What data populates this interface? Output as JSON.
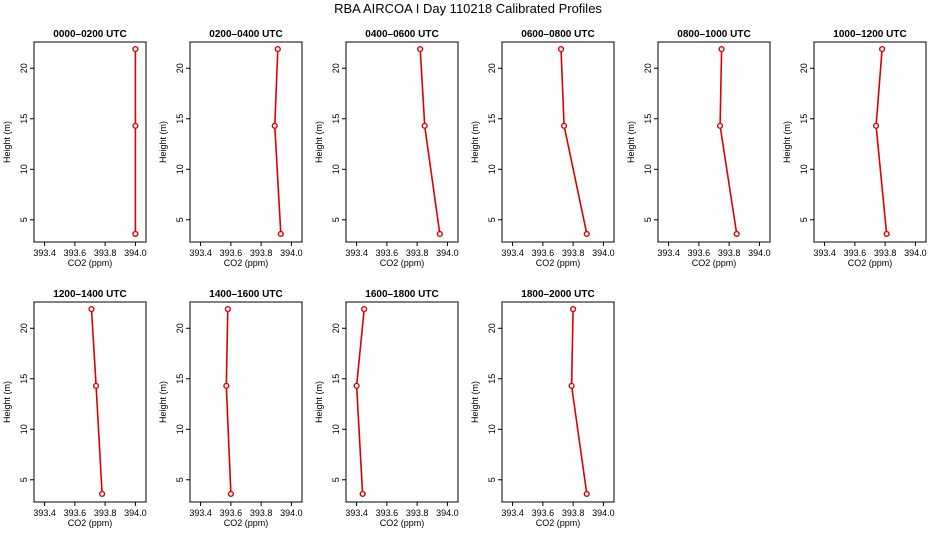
{
  "figure_title": "RBA AIRCOA I  Day 110218  Calibrated Profiles",
  "colors": {
    "profile": "#dd0000",
    "axis": "#000000"
  },
  "chart_data": [
    {
      "type": "line",
      "title": "0000–0200 UTC",
      "xlabel": "CO2 (ppm)",
      "ylabel": "Height (m)",
      "xlim": [
        393.33,
        394.07
      ],
      "ylim": [
        2.8,
        22.6
      ],
      "x_ticks": [
        "393.4",
        "393.6",
        "393.8",
        "394.0"
      ],
      "y_ticks": [
        "5",
        "10",
        "15",
        "20"
      ],
      "x": [
        394.0,
        394.0,
        394.0
      ],
      "y": [
        3.6,
        14.3,
        21.9
      ]
    },
    {
      "type": "line",
      "title": "0200–0400 UTC",
      "xlabel": "CO2 (ppm)",
      "ylabel": "Height (m)",
      "xlim": [
        393.33,
        394.07
      ],
      "ylim": [
        2.8,
        22.6
      ],
      "x_ticks": [
        "393.4",
        "393.6",
        "393.8",
        "394.0"
      ],
      "y_ticks": [
        "5",
        "10",
        "15",
        "20"
      ],
      "x": [
        393.93,
        393.89,
        393.91
      ],
      "y": [
        3.6,
        14.3,
        21.9
      ]
    },
    {
      "type": "line",
      "title": "0400–0600 UTC",
      "xlabel": "CO2 (ppm)",
      "ylabel": "Height (m)",
      "xlim": [
        393.33,
        394.07
      ],
      "ylim": [
        2.8,
        22.6
      ],
      "x_ticks": [
        "393.4",
        "393.6",
        "393.8",
        "394.0"
      ],
      "y_ticks": [
        "5",
        "10",
        "15",
        "20"
      ],
      "x": [
        393.95,
        393.85,
        393.82
      ],
      "y": [
        3.6,
        14.3,
        21.9
      ]
    },
    {
      "type": "line",
      "title": "0600–0800 UTC",
      "xlabel": "CO2 (ppm)",
      "ylabel": "Height (m)",
      "xlim": [
        393.33,
        394.07
      ],
      "ylim": [
        2.8,
        22.6
      ],
      "x_ticks": [
        "393.4",
        "393.6",
        "393.8",
        "394.0"
      ],
      "y_ticks": [
        "5",
        "10",
        "15",
        "20"
      ],
      "x": [
        393.89,
        393.74,
        393.72
      ],
      "y": [
        3.6,
        14.3,
        21.9
      ]
    },
    {
      "type": "line",
      "title": "0800–1000 UTC",
      "xlabel": "CO2 (ppm)",
      "ylabel": "Height (m)",
      "xlim": [
        393.33,
        394.07
      ],
      "ylim": [
        2.8,
        22.6
      ],
      "x_ticks": [
        "393.4",
        "393.6",
        "393.8",
        "394.0"
      ],
      "y_ticks": [
        "5",
        "10",
        "15",
        "20"
      ],
      "x": [
        393.85,
        393.74,
        393.75
      ],
      "y": [
        3.6,
        14.3,
        21.9
      ]
    },
    {
      "type": "line",
      "title": "1000–1200 UTC",
      "xlabel": "CO2 (ppm)",
      "ylabel": "Height (m)",
      "xlim": [
        393.33,
        394.07
      ],
      "ylim": [
        2.8,
        22.6
      ],
      "x_ticks": [
        "393.4",
        "393.6",
        "393.8",
        "394.0"
      ],
      "y_ticks": [
        "5",
        "10",
        "15",
        "20"
      ],
      "x": [
        393.81,
        393.74,
        393.78
      ],
      "y": [
        3.6,
        14.3,
        21.9
      ]
    },
    {
      "type": "line",
      "title": "1200–1400 UTC",
      "xlabel": "CO2 (ppm)",
      "ylabel": "Height (m)",
      "xlim": [
        393.33,
        394.07
      ],
      "ylim": [
        2.8,
        22.6
      ],
      "x_ticks": [
        "393.4",
        "393.6",
        "393.8",
        "394.0"
      ],
      "y_ticks": [
        "5",
        "10",
        "15",
        "20"
      ],
      "x": [
        393.78,
        393.74,
        393.71
      ],
      "y": [
        3.6,
        14.3,
        21.9
      ]
    },
    {
      "type": "line",
      "title": "1400–1600 UTC",
      "xlabel": "CO2 (ppm)",
      "ylabel": "Height (m)",
      "xlim": [
        393.33,
        394.07
      ],
      "ylim": [
        2.8,
        22.6
      ],
      "x_ticks": [
        "393.4",
        "393.6",
        "393.8",
        "394.0"
      ],
      "y_ticks": [
        "5",
        "10",
        "15",
        "20"
      ],
      "x": [
        393.6,
        393.57,
        393.58
      ],
      "y": [
        3.6,
        14.3,
        21.9
      ]
    },
    {
      "type": "line",
      "title": "1600–1800 UTC",
      "xlabel": "CO2 (ppm)",
      "ylabel": "Height (m)",
      "xlim": [
        393.33,
        394.07
      ],
      "ylim": [
        2.8,
        22.6
      ],
      "x_ticks": [
        "393.4",
        "393.6",
        "393.8",
        "394.0"
      ],
      "y_ticks": [
        "5",
        "10",
        "15",
        "20"
      ],
      "x": [
        393.44,
        393.4,
        393.45
      ],
      "y": [
        3.6,
        14.3,
        21.9
      ]
    },
    {
      "type": "line",
      "title": "1800–2000 UTC",
      "xlabel": "CO2 (ppm)",
      "ylabel": "Height (m)",
      "xlim": [
        393.33,
        394.07
      ],
      "ylim": [
        2.8,
        22.6
      ],
      "x_ticks": [
        "393.4",
        "393.6",
        "393.8",
        "394.0"
      ],
      "y_ticks": [
        "5",
        "10",
        "15",
        "20"
      ],
      "x": [
        393.89,
        393.79,
        393.8
      ],
      "y": [
        3.6,
        14.3,
        21.9
      ]
    }
  ]
}
